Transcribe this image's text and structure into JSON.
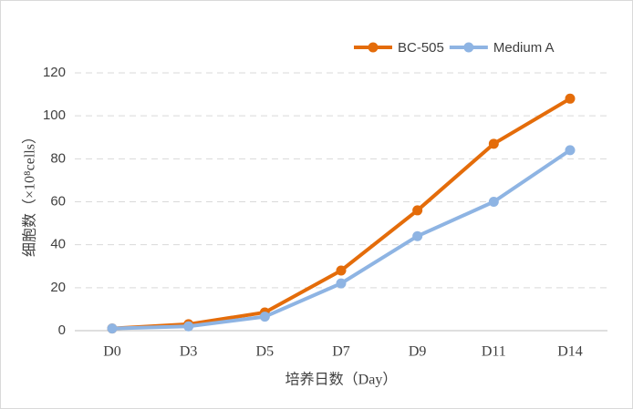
{
  "chart_data": {
    "type": "line",
    "y_label": "细胞数（×10⁸cells）",
    "x_label": "培养日数（Day）",
    "categories": [
      "D0",
      "D3",
      "D5",
      "D7",
      "D9",
      "D11",
      "D14"
    ],
    "series": [
      {
        "name": "BC-505",
        "color": "#e46c0a",
        "values": [
          1,
          3,
          8.5,
          28,
          56,
          87,
          108
        ]
      },
      {
        "name": "Medium A",
        "color": "#8eb4e3",
        "values": [
          1,
          2,
          6.5,
          22,
          44,
          60,
          84
        ]
      }
    ],
    "ylim": [
      0,
      120
    ],
    "yticks": [
      0,
      20,
      40,
      60,
      80,
      100,
      120
    ],
    "grid": true,
    "legend": "top-right"
  }
}
